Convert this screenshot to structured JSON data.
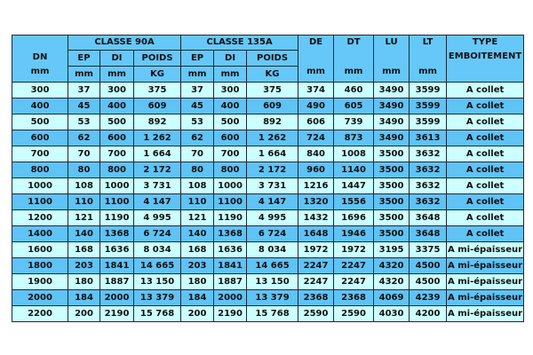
{
  "table": {
    "header": {
      "dn": "DN",
      "dn_unit": "mm",
      "class90": "CLASSE 90A",
      "class135": "CLASSE 135A",
      "ep": "EP",
      "di": "DI",
      "poids": "POIDS",
      "mm": "mm",
      "kg": "KG",
      "de": "DE",
      "dt": "DT",
      "lu": "LU",
      "lt": "LT",
      "type1": "TYPE",
      "type2": "EMBOITEMENT"
    },
    "rows": [
      [
        "300",
        "37",
        "300",
        "375",
        "37",
        "300",
        "375",
        "374",
        "460",
        "3490",
        "3599",
        "A collet"
      ],
      [
        "400",
        "45",
        "400",
        "609",
        "45",
        "400",
        "609",
        "490",
        "605",
        "3490",
        "3599",
        "A collet"
      ],
      [
        "500",
        "53",
        "500",
        "892",
        "53",
        "500",
        "892",
        "606",
        "739",
        "3490",
        "3599",
        "A collet"
      ],
      [
        "600",
        "62",
        "600",
        "1 262",
        "62",
        "600",
        "1 262",
        "724",
        "873",
        "3490",
        "3613",
        "A collet"
      ],
      [
        "700",
        "70",
        "700",
        "1 664",
        "70",
        "700",
        "1 664",
        "840",
        "1008",
        "3500",
        "3632",
        "A collet"
      ],
      [
        "800",
        "80",
        "800",
        "2 172",
        "80",
        "800",
        "2 172",
        "960",
        "1140",
        "3500",
        "3632",
        "A collet"
      ],
      [
        "1000",
        "108",
        "1000",
        "3 731",
        "108",
        "1000",
        "3 731",
        "1216",
        "1447",
        "3500",
        "3632",
        "A collet"
      ],
      [
        "1100",
        "110",
        "1100",
        "4 147",
        "110",
        "1100",
        "4 147",
        "1320",
        "1556",
        "3500",
        "3632",
        "A collet"
      ],
      [
        "1200",
        "121",
        "1190",
        "4 995",
        "121",
        "1190",
        "4 995",
        "1432",
        "1696",
        "3500",
        "3648",
        "A collet"
      ],
      [
        "1400",
        "140",
        "1368",
        "6 724",
        "140",
        "1368",
        "6 724",
        "1648",
        "1946",
        "3500",
        "3648",
        "A collet"
      ],
      [
        "1600",
        "168",
        "1636",
        "8 034",
        "168",
        "1636",
        "8 034",
        "1972",
        "1972",
        "3195",
        "3375",
        "A mi-épaisseur"
      ],
      [
        "1800",
        "203",
        "1841",
        "14 665",
        "203",
        "1841",
        "14 665",
        "2247",
        "2247",
        "4320",
        "4500",
        "A mi-épaisseur"
      ],
      [
        "1900",
        "180",
        "1887",
        "13 150",
        "180",
        "1887",
        "13 150",
        "2247",
        "2247",
        "4320",
        "4500",
        "A mi-épaisseur"
      ],
      [
        "2000",
        "184",
        "2000",
        "13 379",
        "184",
        "2000",
        "13 379",
        "2368",
        "2368",
        "4069",
        "4239",
        "A mi-épaisseur"
      ],
      [
        "2200",
        "200",
        "2190",
        "15 768",
        "200",
        "2190",
        "15 768",
        "2590",
        "2590",
        "4030",
        "4200",
        "A mi-épaisseur"
      ]
    ],
    "colors": {
      "header": "#66c8f8",
      "row_light": "#ccffff",
      "row_dark": "#5fc3f5"
    }
  }
}
